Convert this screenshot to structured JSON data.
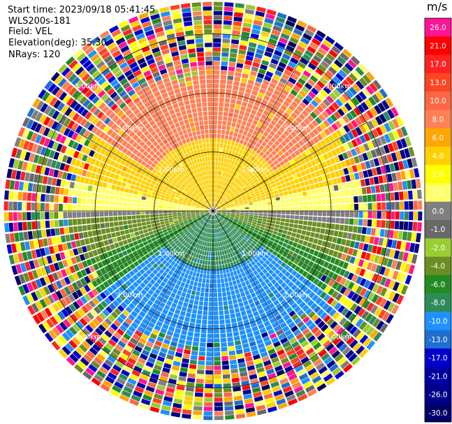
{
  "header": {
    "start_time": "Start time: 2023/09/18 05:41:45",
    "site": "WLS200s-181",
    "field": "Field: VEL",
    "elevation": "Elevation(deg): 35.30",
    "nrays": "NRays: 120"
  },
  "colorbar": {
    "unit": "m/s",
    "ticks": [
      "26.0",
      "21.0",
      "17.0",
      "13.0",
      "10.0",
      "8.0",
      "6.0",
      "4.0",
      "2.0",
      "1.0",
      "0.0",
      "-1.0",
      "-2.0",
      "-4.0",
      "-6.0",
      "-8.0",
      "-10.0",
      "-13.0",
      "-17.0",
      "-21.0",
      "-26.0",
      "-30.0"
    ],
    "colors": [
      "#ff1493",
      "#ff0000",
      "#ff2222",
      "#ff4422",
      "#ff6644",
      "#ff8055",
      "#ffa500",
      "#ffd000",
      "#ffff00",
      "#ffff66",
      "#808080",
      "#696969",
      "#9acd32",
      "#6b8e23",
      "#228b22",
      "#2e8b57",
      "#1e90ff",
      "#1e6fd0",
      "#0000cd",
      "#0000a0",
      "#00008b",
      "#000066"
    ]
  },
  "chart_data": {
    "type": "ppi",
    "title": "",
    "field": "VEL",
    "unit": "m/s",
    "elevation_deg": 35.3,
    "n_rays": 120,
    "range_rings_km": [
      1.0,
      2.0,
      3.0
    ],
    "ring_labels": [
      "1.00km",
      "2.00km",
      "3.00km"
    ],
    "color_scale": [
      -30.0,
      -26.0,
      -21.0,
      -17.0,
      -13.0,
      -10.0,
      -8.0,
      -6.0,
      -4.0,
      -2.0,
      -1.0,
      0.0,
      1.0,
      2.0,
      4.0,
      6.0,
      8.0,
      10.0,
      13.0,
      17.0,
      21.0,
      26.0
    ],
    "velocity_pattern": [
      {
        "sector": "north",
        "velocity_ms": 8.0
      },
      {
        "sector": "north-near",
        "velocity_ms": 4.0
      },
      {
        "sector": "east-west",
        "velocity_ms": 1.0
      },
      {
        "sector": "south-near",
        "velocity_ms": -4.0
      },
      {
        "sector": "south",
        "velocity_ms": -10.0
      }
    ],
    "noise_beyond_km": 2.6
  }
}
